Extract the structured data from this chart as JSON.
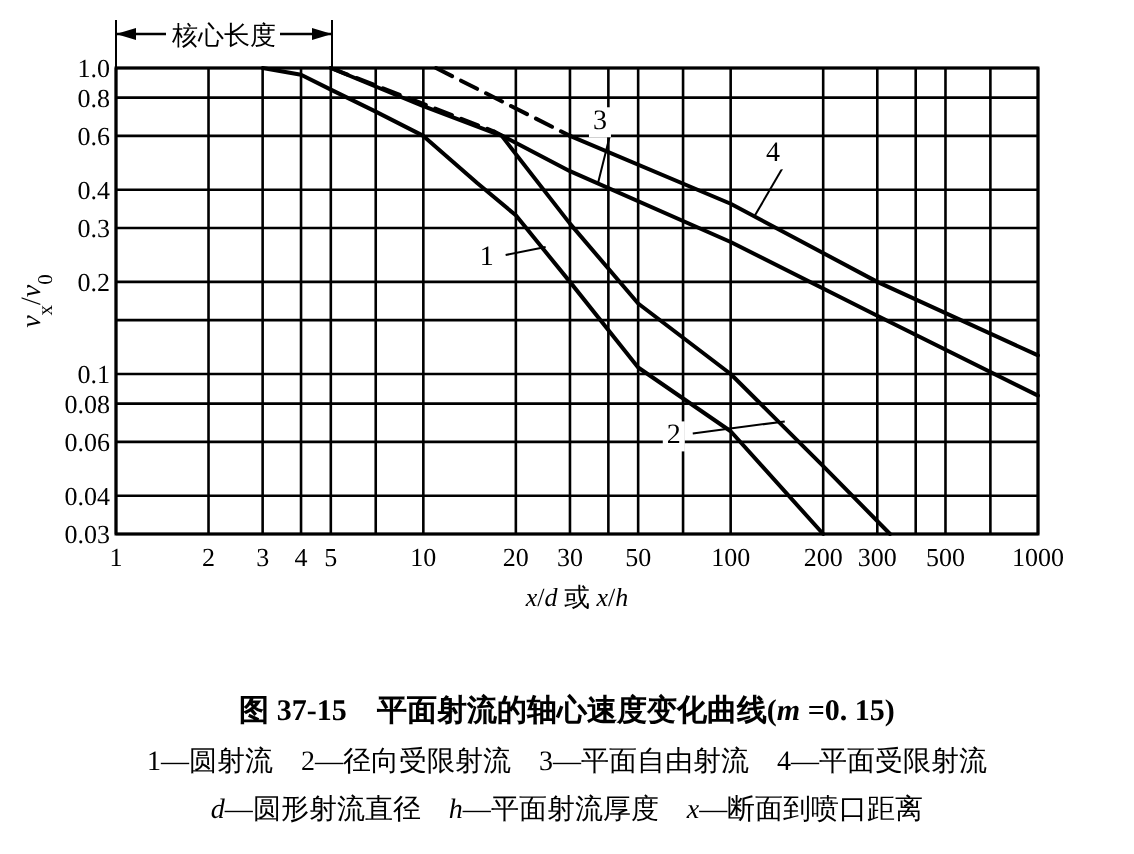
{
  "chart_data": {
    "type": "line",
    "title": "图 37-15　平面射流的轴心速度变化曲线(*m* =0. 15)",
    "xlabel": "*x*/*d* 或 *x*/*h*",
    "ylabel": "*v*$_{x}$/*v*$_{0}$",
    "log": "xy",
    "grid": true,
    "marker": "none",
    "xlim": [
      1,
      1000
    ],
    "ylim": [
      0.03,
      1.0
    ],
    "xticks": [
      1,
      2,
      3,
      4,
      5,
      {
        "value": 7,
        "label": null
      },
      10,
      20,
      30,
      {
        "value": 40,
        "label": null
      },
      50,
      {
        "value": 70,
        "label": null
      },
      100,
      200,
      300,
      {
        "value": 400,
        "label": null
      },
      500,
      {
        "value": 700,
        "label": null
      },
      1000
    ],
    "yticks": [
      0.03,
      0.04,
      0.06,
      0.08,
      0.1,
      {
        "value": 0.15,
        "label": null
      },
      0.2,
      0.3,
      0.4,
      0.6,
      0.8,
      {
        "value": 1.0,
        "label": "1.0"
      }
    ],
    "series": [
      {
        "color": "#000000",
        "line_style": "solid",
        "x": [
          3,
          4,
          5,
          7,
          10,
          15,
          20,
          30,
          50,
          100,
          200
        ],
        "values": [
          1.0,
          0.95,
          0.85,
          0.72,
          0.6,
          0.42,
          0.33,
          0.2,
          0.105,
          0.065,
          0.03
        ]
      },
      {
        "color": "#000000",
        "line_style": "solid",
        "x": [
          5,
          10,
          18,
          30,
          50,
          100,
          200,
          330
        ],
        "values": [
          1.0,
          0.75,
          0.6,
          0.31,
          0.17,
          0.1,
          0.05,
          0.03
        ]
      },
      {
        "color": "#000000",
        "line_style": "dashed",
        "x": [
          5,
          17
        ],
        "values": [
          1.0,
          0.62
        ]
      },
      {
        "color": "#000000",
        "line_style": "solid",
        "x": [
          17,
          30,
          100,
          300,
          1000
        ],
        "values": [
          0.62,
          0.46,
          0.27,
          0.155,
          0.085
        ]
      },
      {
        "color": "#000000",
        "line_style": "dashed",
        "x": [
          11,
          30
        ],
        "values": [
          1.0,
          0.6
        ]
      },
      {
        "color": "#000000",
        "line_style": "solid",
        "x": [
          30,
          100,
          300,
          1000
        ],
        "values": [
          0.6,
          0.36,
          0.2,
          0.115
        ]
      }
    ],
    "annotations": [
      "核心长度",
      {
        "text": "1",
        "x": 25,
        "y": 0.26
      },
      {
        "text": "2",
        "x": 150,
        "y": 0.07
      },
      {
        "text": "3",
        "x": 37,
        "y": 0.42
      },
      {
        "text": "4",
        "x": 120,
        "y": 0.33
      },
      "1—圆射流　2—径向受限射流　3—平面自由射流　4—平面受限射流",
      "*d*—圆形射流直径　*h*—平面射流厚度　*x*—断面到喷口距离"
    ]
  }
}
